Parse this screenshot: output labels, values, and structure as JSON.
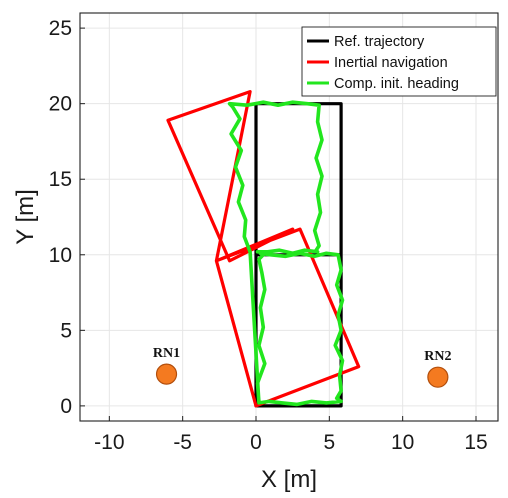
{
  "chart_data": {
    "type": "line",
    "xlabel": "X [m]",
    "ylabel": "Y [m]",
    "xlim": [
      -12,
      16.5
    ],
    "ylim": [
      -1,
      26
    ],
    "xticks": [
      -10,
      -5,
      0,
      5,
      10,
      15
    ],
    "yticks": [
      0,
      5,
      10,
      15,
      20,
      25
    ],
    "grid": true,
    "legend_position": "top-right",
    "legend": [
      "Ref. trajectory",
      "Inertial navigation",
      "Comp. init. heading"
    ],
    "series": [
      {
        "name": "Ref. trajectory",
        "color": "#000000",
        "x": [
          0,
          5.8,
          5.8,
          0,
          0,
          5.8,
          5.8,
          0,
          0
        ],
        "y": [
          0,
          0,
          10,
          10,
          20,
          20,
          10,
          10,
          0
        ]
      },
      {
        "name": "Inertial navigation",
        "color": "#ff0000",
        "x": [
          0,
          7.0,
          3.0,
          -2.7,
          -0.4,
          -6.0,
          -1.8,
          2.5,
          -2.7,
          0
        ],
        "y": [
          0,
          2.6,
          11.7,
          9.6,
          20.8,
          18.9,
          9.6,
          11.7,
          9.6,
          0
        ]
      },
      {
        "name": "Comp. init. heading",
        "color": "#22e61e",
        "x": [
          0.2,
          0.1,
          0.6,
          0.2,
          0.5,
          0.3,
          0.6,
          0.4,
          0.2,
          0.5,
          0.3,
          1.0,
          2.0,
          3.0,
          4.0,
          4.8,
          5.6,
          5.8,
          5.5,
          5.9,
          5.6,
          5.8,
          5.4,
          5.9,
          5.7,
          5.8,
          5.5,
          5.8,
          4.8,
          3.8,
          2.8,
          1.8,
          0.9,
          0.2,
          -0.4,
          -0.8,
          -0.7,
          -1.2,
          -0.9,
          -1.4,
          -1.0,
          -1.7,
          -1.1,
          -1.6,
          -1.8,
          -0.6,
          0.5,
          1.5,
          2.5,
          3.5,
          4.3,
          4.2,
          4.5,
          4.1,
          4.5,
          4.2,
          4.4,
          4.0,
          4.3,
          4.1,
          4.2,
          3.3,
          2.5,
          1.6,
          0.8,
          0.1
        ],
        "y": [
          0.3,
          1.5,
          2.8,
          4.0,
          5.2,
          6.5,
          7.7,
          8.8,
          9.7,
          10.0,
          10.1,
          10.0,
          9.9,
          10.1,
          9.9,
          10.1,
          10.0,
          9.0,
          8.0,
          7.0,
          6.0,
          5.0,
          4.0,
          3.0,
          2.0,
          1.0,
          0.5,
          0.3,
          0.2,
          0.3,
          0.1,
          0.2,
          0.3,
          0.2,
          10.2,
          11.2,
          12.3,
          13.5,
          14.6,
          15.8,
          16.9,
          18.0,
          19.0,
          19.8,
          20.0,
          19.9,
          20.1,
          19.9,
          20.1,
          20.0,
          19.9,
          18.8,
          17.6,
          16.4,
          15.2,
          14.0,
          12.8,
          11.6,
          10.6,
          10.3,
          10.2,
          10.3,
          10.1,
          10.3,
          10.2,
          10.2
        ]
      }
    ],
    "markers": [
      {
        "label": "RN1",
        "x": -6.1,
        "y": 2.1,
        "color": "#f47a20"
      },
      {
        "label": "RN2",
        "x": 12.4,
        "y": 1.9,
        "color": "#f47a20"
      }
    ]
  }
}
